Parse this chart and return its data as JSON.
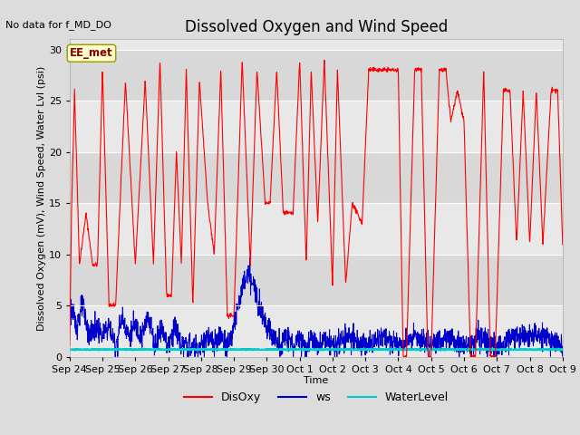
{
  "title": "Dissolved Oxygen and Wind Speed",
  "no_data_text": "No data for f_MD_DO",
  "annotation_text": "EE_met",
  "xlabel": "Time",
  "ylabel": "Dissolved Oxygen (mV), Wind Speed, Water Lvl (psi)",
  "ylim": [
    0,
    31
  ],
  "yticks": [
    0,
    5,
    10,
    15,
    20,
    25,
    30
  ],
  "x_tick_labels": [
    "Sep 24",
    "Sep 25",
    "Sep 26",
    "Sep 27",
    "Sep 28",
    "Sep 29",
    "Sep 30",
    "Oct 1",
    "Oct 2",
    "Oct 3",
    "Oct 4",
    "Oct 5",
    "Oct 6",
    "Oct 7",
    "Oct 8",
    "Oct 9"
  ],
  "background_color": "#dcdcdc",
  "plot_bg_color": "#e8e8e8",
  "disoxy_color": "#ff0000",
  "ws_color": "#0000cc",
  "waterlevel_color": "#00cccc",
  "legend_labels": [
    "DisOxy",
    "ws",
    "WaterLevel"
  ],
  "title_fontsize": 12,
  "axis_label_fontsize": 8,
  "tick_fontsize": 8,
  "grid_color": "#ffffff",
  "grid_band_colors": [
    "#e8e8e8",
    "#d8d8d8"
  ],
  "annotation_facecolor": "#ffffcc",
  "annotation_edgecolor": "#999900",
  "annotation_textcolor": "#880000"
}
